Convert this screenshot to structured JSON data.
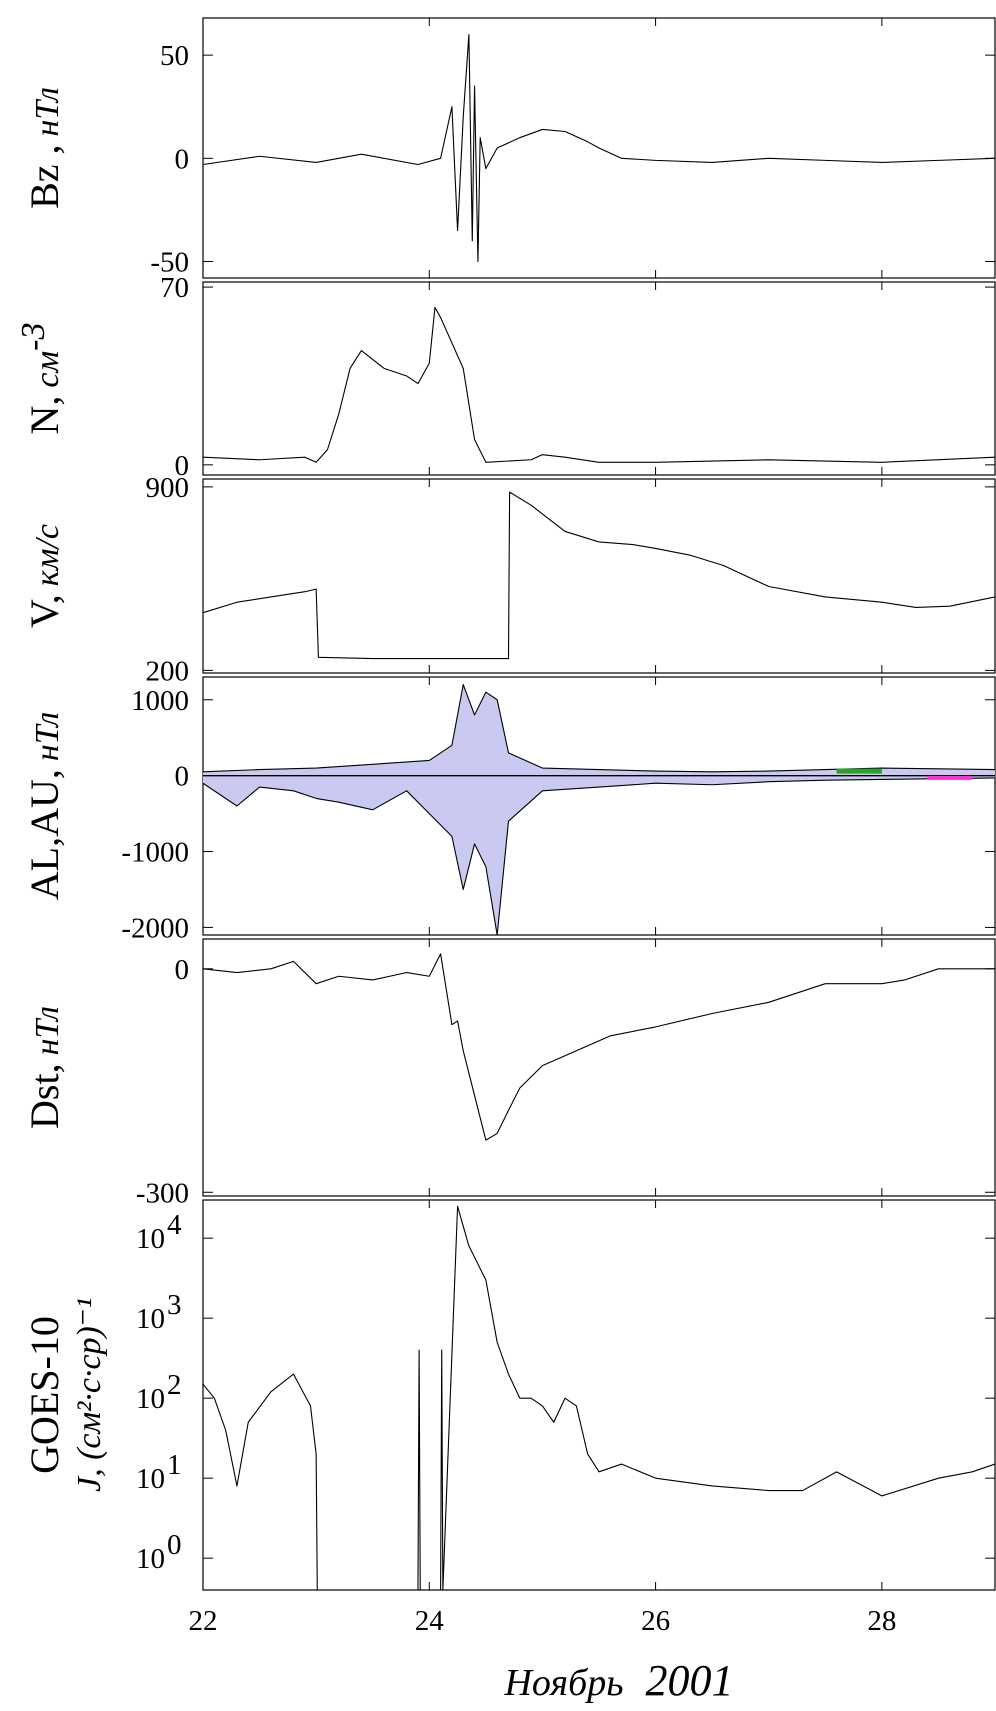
{
  "x_axis": {
    "label_month": "Ноябрь",
    "label_year": "2001",
    "ticks": [
      22,
      24,
      26,
      28
    ],
    "tick_labels": [
      "22",
      "24",
      "26",
      "28"
    ],
    "range": [
      22,
      29
    ]
  },
  "chart_data": [
    {
      "type": "line",
      "id": "bz",
      "ylabel": "Bz , нТл",
      "ylabel_main": "Bz ,",
      "ylabel_unit": "нТл",
      "ylim": [
        -58,
        68
      ],
      "yticks": [
        -50,
        0,
        50
      ],
      "ytick_labels": [
        "-50",
        "0",
        "50"
      ],
      "series": [
        {
          "x": [
            22.0,
            22.5,
            23.0,
            23.4,
            23.9,
            24.1,
            24.2,
            24.25,
            24.3,
            24.35,
            24.38,
            24.4,
            24.43,
            24.45,
            24.5,
            24.6,
            24.8,
            25.0,
            25.2,
            25.4,
            25.5,
            25.7,
            26.0,
            26.5,
            27.0,
            27.5,
            28.0,
            28.5,
            29.0
          ],
          "y": [
            -3,
            1,
            -2,
            2,
            -3,
            0,
            25,
            -35,
            20,
            60,
            -40,
            35,
            -50,
            10,
            -5,
            5,
            10,
            14,
            13,
            8,
            5,
            0,
            -1,
            -2,
            0,
            -1,
            -2,
            -1,
            0
          ]
        }
      ]
    },
    {
      "type": "line",
      "id": "n",
      "ylabel": "N, см-3",
      "ylabel_main": "N,",
      "ylabel_unit": "см",
      "ylabel_sup": "-3",
      "ylim": [
        -4,
        72
      ],
      "yticks": [
        0,
        70
      ],
      "ytick_labels": [
        "0",
        "70"
      ],
      "series": [
        {
          "x": [
            22.0,
            22.5,
            22.9,
            23.0,
            23.1,
            23.2,
            23.3,
            23.4,
            23.6,
            23.8,
            23.9,
            24.0,
            24.05,
            24.1,
            24.3,
            24.4,
            24.5,
            24.9,
            25.0,
            25.2,
            25.5,
            26.0,
            27.0,
            28.0,
            29.0
          ],
          "y": [
            3,
            2,
            3,
            1,
            6,
            20,
            38,
            45,
            38,
            35,
            32,
            40,
            62,
            58,
            38,
            10,
            1,
            2,
            4,
            3,
            1,
            1,
            2,
            1,
            3
          ]
        }
      ]
    },
    {
      "type": "line",
      "id": "v",
      "ylabel": "V, км/с",
      "ylabel_main": "V,",
      "ylabel_unit": "км/с",
      "ylim": [
        190,
        930
      ],
      "yticks": [
        200,
        900
      ],
      "ytick_labels": [
        "200",
        "900"
      ],
      "series": [
        {
          "x": [
            22.0,
            22.3,
            22.6,
            22.9,
            23.0,
            23.02,
            23.5,
            24.0,
            24.5,
            24.7,
            24.71,
            24.9,
            25.2,
            25.5,
            25.8,
            26.0,
            26.3,
            26.6,
            27.0,
            27.5,
            28.0,
            28.3,
            28.6,
            29.0
          ],
          "y": [
            420,
            460,
            480,
            500,
            510,
            250,
            245,
            245,
            245,
            245,
            880,
            830,
            730,
            690,
            680,
            665,
            640,
            600,
            520,
            480,
            460,
            440,
            445,
            480
          ]
        }
      ]
    },
    {
      "type": "area",
      "id": "alau",
      "ylabel": "AL,AU, нТл",
      "ylabel_main": "AL,AU,",
      "ylabel_unit": "нТл",
      "ylim": [
        -2100,
        1300
      ],
      "yticks": [
        -2000,
        -1000,
        0,
        1000
      ],
      "ytick_labels": [
        "-2000",
        "-1000",
        "0",
        "1000"
      ],
      "colors": {
        "fill": "#c9c9f2",
        "au": "#2ca02c",
        "accent": "#ff33cc"
      },
      "series": [
        {
          "id": "au",
          "x": [
            22.0,
            22.5,
            23.0,
            23.5,
            24.0,
            24.2,
            24.3,
            24.4,
            24.5,
            24.6,
            24.7,
            25.0,
            25.5,
            26.0,
            26.5,
            27.0,
            27.5,
            28.0,
            28.5,
            29.0
          ],
          "y": [
            50,
            80,
            100,
            150,
            200,
            400,
            1200,
            800,
            1100,
            1000,
            300,
            100,
            80,
            60,
            50,
            60,
            80,
            100,
            90,
            80
          ]
        },
        {
          "id": "al",
          "x": [
            22.0,
            22.3,
            22.5,
            22.8,
            23.0,
            23.2,
            23.5,
            23.8,
            24.0,
            24.2,
            24.3,
            24.4,
            24.5,
            24.6,
            24.7,
            25.0,
            25.5,
            26.0,
            26.5,
            27.0,
            27.5,
            28.0,
            28.5,
            29.0
          ],
          "y": [
            -100,
            -400,
            -150,
            -200,
            -300,
            -350,
            -450,
            -200,
            -500,
            -800,
            -1500,
            -900,
            -1200,
            -2100,
            -600,
            -200,
            -150,
            -100,
            -120,
            -80,
            -60,
            -50,
            -40,
            -30
          ]
        }
      ]
    },
    {
      "type": "line",
      "id": "dst",
      "ylabel": "Dst, нТл",
      "ylabel_main": "Dst,",
      "ylabel_unit": "нТл",
      "ylim": [
        -305,
        40
      ],
      "yticks": [
        -300,
        0
      ],
      "ytick_labels": [
        "-300",
        "0"
      ],
      "series": [
        {
          "x": [
            22.0,
            22.3,
            22.6,
            22.8,
            23.0,
            23.2,
            23.5,
            23.8,
            24.0,
            24.1,
            24.2,
            24.25,
            24.3,
            24.4,
            24.5,
            24.6,
            24.7,
            24.8,
            25.0,
            25.3,
            25.6,
            26.0,
            26.5,
            27.0,
            27.5,
            28.0,
            28.2,
            28.5,
            29.0
          ],
          "y": [
            0,
            -5,
            0,
            10,
            -20,
            -10,
            -15,
            -5,
            -10,
            20,
            -75,
            -70,
            -110,
            -170,
            -230,
            -221,
            -190,
            -160,
            -130,
            -110,
            -90,
            -78,
            -60,
            -45,
            -20,
            -20,
            -15,
            0,
            0
          ]
        }
      ]
    },
    {
      "type": "line",
      "id": "goes",
      "ylabel": "GOES-10 J, (см2·с·ср)-1",
      "ylabel_main": "GOES-10",
      "ylabel_sub": "J, (см²·с·ср)⁻¹",
      "yscale": "log",
      "ylim": [
        0.4,
        30000
      ],
      "yticks": [
        1,
        10,
        100,
        1000,
        10000
      ],
      "ytick_base": "10",
      "ytick_exps": [
        "0",
        "1",
        "2",
        "3",
        "4"
      ],
      "series": [
        {
          "x": [
            22.0,
            22.1,
            22.2,
            22.3,
            22.4,
            22.6,
            22.8,
            22.95,
            23.0,
            23.01,
            23.9,
            23.91,
            23.92,
            24.1,
            24.11,
            24.12,
            24.25,
            24.35,
            24.5,
            24.6,
            24.7,
            24.8,
            24.9,
            25.0,
            25.1,
            25.2,
            25.3,
            25.4,
            25.5,
            25.7,
            26.0,
            26.5,
            27.0,
            27.3,
            27.6,
            28.0,
            28.5,
            28.8,
            29.0
          ],
          "y": [
            150,
            100,
            40,
            8,
            50,
            120,
            200,
            80,
            20,
            0.4,
            0.4,
            400,
            0.4,
            0.4,
            400,
            0.4,
            25000,
            8000,
            3000,
            500,
            200,
            100,
            100,
            80,
            50,
            100,
            80,
            20,
            12,
            15,
            10,
            8,
            7,
            7,
            12,
            6,
            10,
            12,
            15
          ]
        }
      ]
    }
  ]
}
